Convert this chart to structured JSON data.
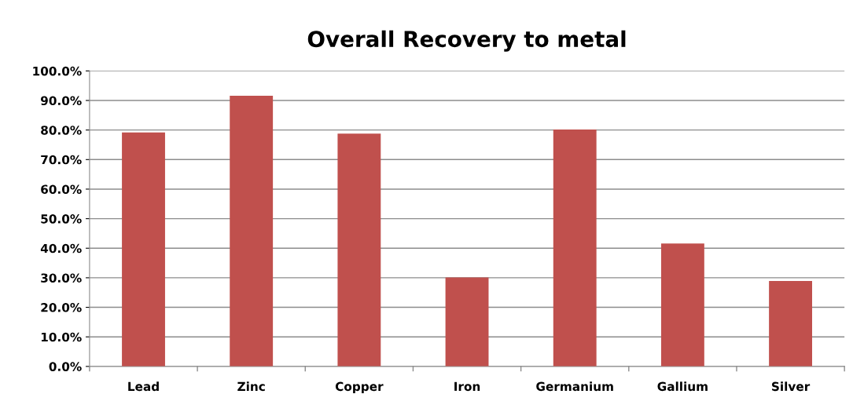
{
  "chart_data": {
    "type": "bar",
    "title": "Overall Recovery to metal",
    "categories": [
      "Lead",
      "Zinc",
      "Copper",
      "Iron",
      "Germanium",
      "Gallium",
      "Silver"
    ],
    "values": [
      79.2,
      91.6,
      78.8,
      30.1,
      80.2,
      41.6,
      28.9
    ],
    "color": "#c0504d",
    "ylim": [
      0,
      100
    ],
    "yticks": [
      {
        "value": 0,
        "label": "0.0%"
      },
      {
        "value": 10,
        "label": "10.0%"
      },
      {
        "value": 20,
        "label": "20.0%"
      },
      {
        "value": 30,
        "label": "30.0%"
      },
      {
        "value": 40,
        "label": "40.0%"
      },
      {
        "value": 50,
        "label": "50.0%"
      },
      {
        "value": 60,
        "label": "60.0%"
      },
      {
        "value": 70,
        "label": "70.0%"
      },
      {
        "value": 80,
        "label": "80.0%"
      },
      {
        "value": 90,
        "label": "90.0%"
      },
      {
        "value": 100,
        "label": "100.0%"
      }
    ],
    "grid": "y"
  }
}
